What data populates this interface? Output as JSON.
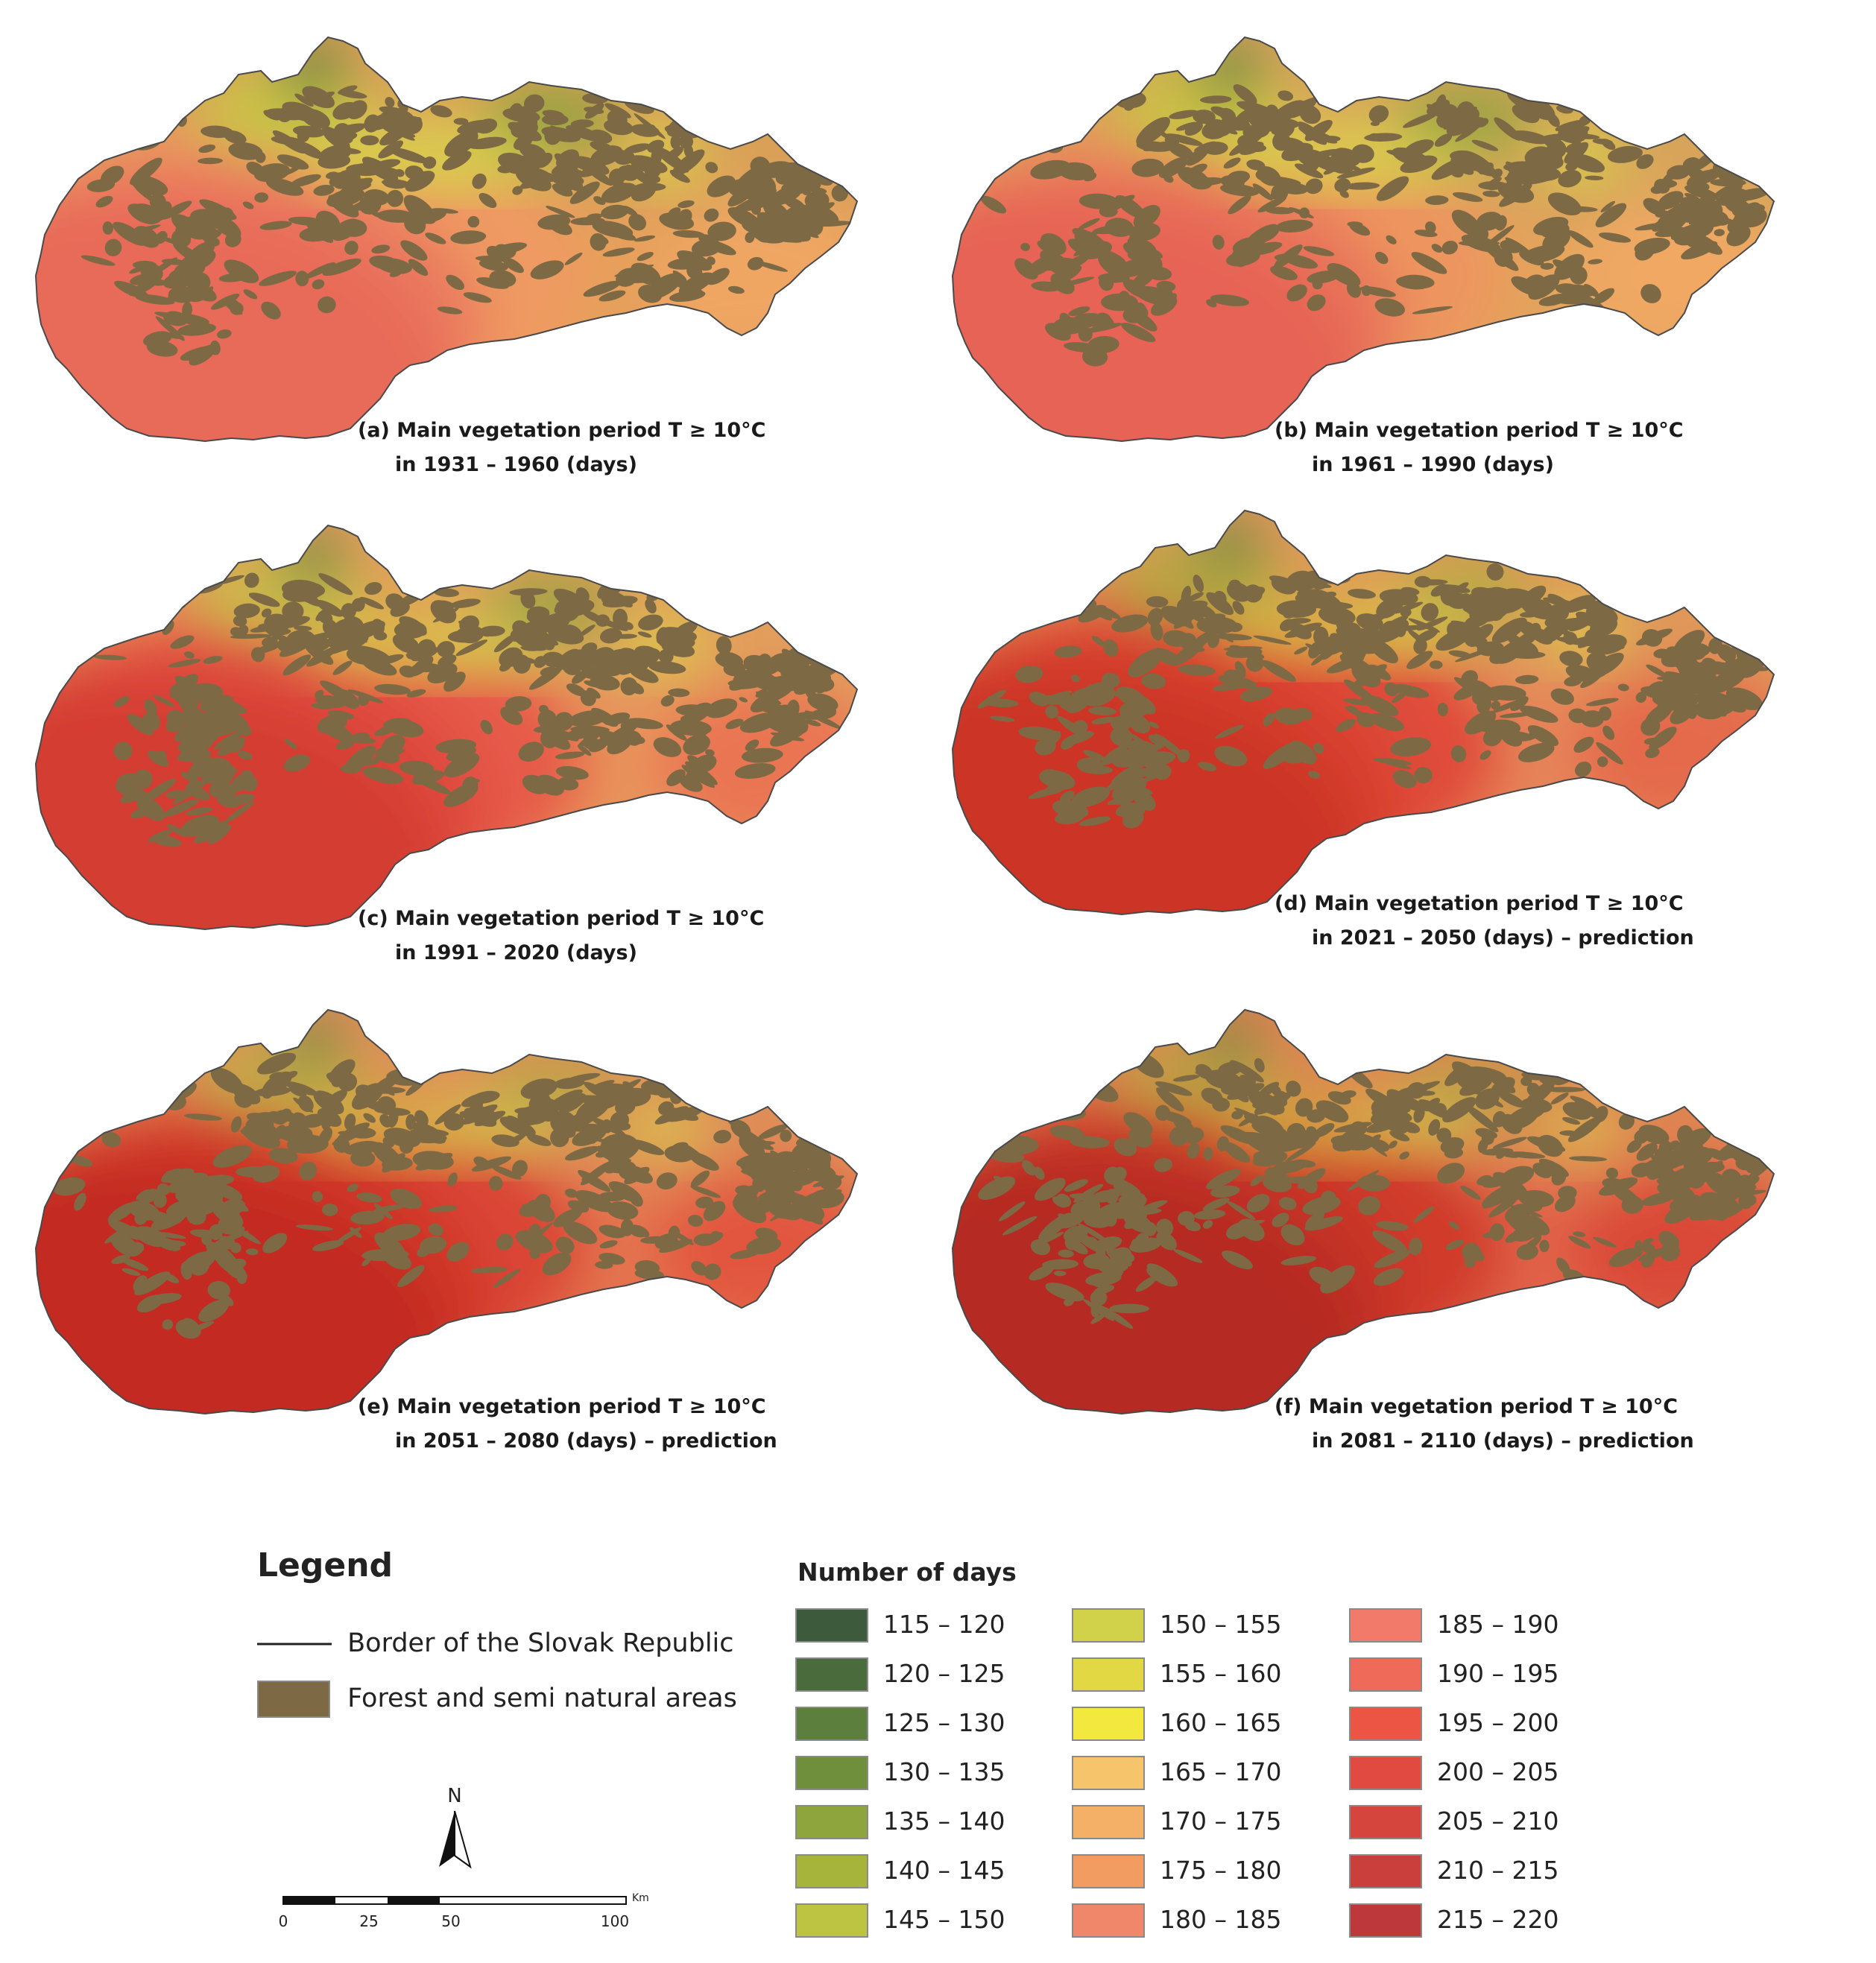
{
  "maps": [
    {
      "id": "a",
      "caption_line1": "(a) Main vegetation period T ≥ 10°C",
      "caption_line2": "in 1931 – 1960 (days)",
      "warmth": 0
    },
    {
      "id": "b",
      "caption_line1": "(b) Main vegetation period T ≥ 10°C",
      "caption_line2": "in 1961 – 1990 (days)",
      "warmth": 1
    },
    {
      "id": "c",
      "caption_line1": "(c) Main vegetation period T ≥ 10°C",
      "caption_line2": "in 1991 – 2020 (days)",
      "warmth": 2
    },
    {
      "id": "d",
      "caption_line1": "(d) Main vegetation period T ≥ 10°C",
      "caption_line2": "in 2021 – 2050 (days) – prediction",
      "warmth": 3
    },
    {
      "id": "e",
      "caption_line1": "(e) Main vegetation period T ≥ 10°C",
      "caption_line2": "in 2051 – 2080 (days) – prediction",
      "warmth": 4
    },
    {
      "id": "f",
      "caption_line1": "(f) Main vegetation period T ≥ 10°C",
      "caption_line2": "in 2081 – 2110 (days) – prediction",
      "warmth": 5
    }
  ],
  "legend": {
    "title": "Legend",
    "border_label": "Border of the Slovak Republic",
    "forest_label": "Forest and semi natural areas",
    "forest_color": "#7d6a45",
    "days_title": "Number of days",
    "classes": [
      {
        "label": "115 – 120",
        "color": "#3d5a3c"
      },
      {
        "label": "120 – 125",
        "color": "#4a6b3c"
      },
      {
        "label": "125 – 130",
        "color": "#5c7f3d"
      },
      {
        "label": "130 – 135",
        "color": "#6f8f3d"
      },
      {
        "label": "135 – 140",
        "color": "#8ea43c"
      },
      {
        "label": "140 – 145",
        "color": "#a6b43c"
      },
      {
        "label": "145 – 150",
        "color": "#bcc442"
      },
      {
        "label": "150 – 155",
        "color": "#d2d24a"
      },
      {
        "label": "155 – 160",
        "color": "#e2d844"
      },
      {
        "label": "160 – 165",
        "color": "#f2e83e"
      },
      {
        "label": "165 – 170",
        "color": "#f6c46a"
      },
      {
        "label": "170 – 175",
        "color": "#f4b066"
      },
      {
        "label": "175 – 180",
        "color": "#f29c62"
      },
      {
        "label": "180 – 185",
        "color": "#f0876a"
      },
      {
        "label": "185 – 190",
        "color": "#f27a6a"
      },
      {
        "label": "190 – 195",
        "color": "#f06a5a"
      },
      {
        "label": "195 – 200",
        "color": "#ec5444"
      },
      {
        "label": "200 – 205",
        "color": "#e04a40"
      },
      {
        "label": "205 – 210",
        "color": "#d6443e"
      },
      {
        "label": "210 – 215",
        "color": "#ca3e3c"
      },
      {
        "label": "215 – 220",
        "color": "#bc383a"
      }
    ]
  },
  "north_label": "N",
  "scale": {
    "unit": "Km",
    "ticks": [
      "0",
      "25",
      "50",
      "100"
    ]
  }
}
